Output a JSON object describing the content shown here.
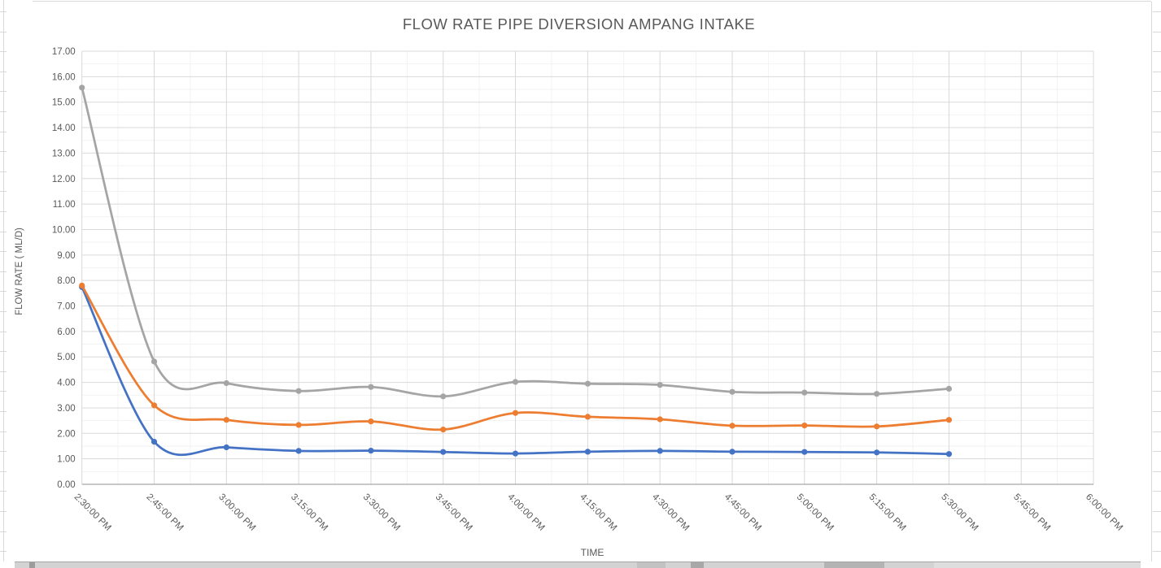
{
  "chart": {
    "title": "FLOW RATE PIPE DIVERSION AMPANG INTAKE",
    "x_axis_title": "TIME",
    "y_axis_title": "FLOW RATE ( ML/D)"
  },
  "chart_data": {
    "type": "line",
    "title": "FLOW RATE PIPE DIVERSION AMPANG INTAKE",
    "xlabel": "TIME",
    "ylabel": "FLOW RATE ( ML/D)",
    "categories": [
      "2:30:00 PM",
      "2:45:00 PM",
      "3:00:00 PM",
      "3:15:00 PM",
      "3:30:00 PM",
      "3:45:00 PM",
      "4:00:00 PM",
      "4:15:00 PM",
      "4:30:00 PM",
      "4:45:00 PM",
      "5:00:00 PM",
      "5:15:00 PM",
      "5:30:00 PM",
      "5:45:00 PM",
      "6:00:00 PM"
    ],
    "series": [
      {
        "name": "blue-series",
        "color": "#4472C4",
        "values": [
          7.74,
          1.67,
          1.45,
          1.31,
          1.32,
          1.27,
          1.21,
          1.28,
          1.31,
          1.28,
          1.27,
          1.25,
          1.19
        ]
      },
      {
        "name": "orange-series",
        "color": "#ED7D31",
        "values": [
          7.8,
          3.1,
          2.53,
          2.33,
          2.47,
          2.15,
          2.8,
          2.65,
          2.55,
          2.3,
          2.31,
          2.27,
          2.53
        ]
      },
      {
        "name": "gray-series",
        "color": "#A5A5A5",
        "values": [
          15.57,
          4.82,
          3.97,
          3.66,
          3.82,
          3.45,
          4.02,
          3.95,
          3.9,
          3.63,
          3.6,
          3.55,
          3.75
        ]
      }
    ],
    "ylim": [
      0,
      17
    ],
    "y_major_unit": 1.0,
    "y_minor_unit": 0.5,
    "y_tick_format": "0.00",
    "x_label_rotation_deg": 45,
    "grid": true,
    "smooth": true,
    "legend": "none"
  },
  "style_colors": {
    "major_gridline": "#D9D9D9",
    "minor_gridline": "#F2F2F2",
    "axis_line": "#A6A6A6",
    "tick_label": "#595959",
    "title_text": "#595959"
  }
}
